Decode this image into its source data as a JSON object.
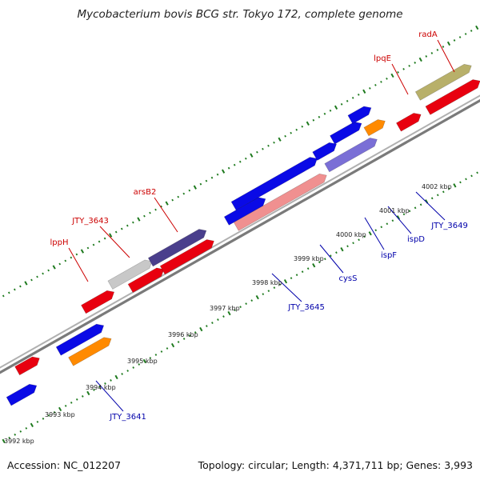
{
  "title": "Mycobacterium bovis BCG str. Tokyo 172, complete genome",
  "footer": {
    "accession": "Accession: NC_012207",
    "summary": "Topology: circular; Length: 4,371,711 bp; Genes: 3,993"
  },
  "colors": {
    "red": "#e8000f",
    "blue": "#0a0ae6",
    "orange": "#ff8a00",
    "olive": "#b8b06a",
    "darkpurple": "#4a3f8c",
    "lightgray": "#c8c8c8",
    "pink": "#f09090",
    "lavender": "#7a6fd6",
    "backbone": "#8e8e8e",
    "tick": "#1e7a1e",
    "labelA": "#cc0000",
    "labelB": "#0000aa"
  },
  "scale_labels": [
    "3992 kbp",
    "3993 kbp",
    "3994 kbp",
    "3995 kbp",
    "3996 kbp",
    "3997 kbp",
    "3998 kbp",
    "3999 kbp",
    "4000 kbp",
    "4001 kbp",
    "4002 kbp"
  ],
  "gene_labels_a": [
    "radA",
    "lpqE",
    "arsB2",
    "JTY_3643",
    "lppH"
  ],
  "gene_labels_b": [
    "JTY_3649",
    "ispD",
    "ispF",
    "cysS",
    "JTY_3645",
    "JTY_3641"
  ],
  "features": [
    {
      "name": "radA",
      "color": "olive"
    },
    {
      "name": "lpqE",
      "color": "red"
    },
    {
      "name": "arsB2",
      "color": "darkpurple"
    },
    {
      "name": "JTY_3643",
      "color": "lightgray"
    },
    {
      "name": "lppH",
      "color": "red"
    },
    {
      "name": "cysS",
      "color": "pink"
    },
    {
      "name": "ispF",
      "color": "lavender"
    },
    {
      "name": "ispD",
      "color": "blue"
    },
    {
      "name": "JTY_3649",
      "color": "orange"
    },
    {
      "name": "JTY_3645",
      "color": "blue"
    },
    {
      "name": "JTY_3641",
      "color": "orange"
    }
  ]
}
